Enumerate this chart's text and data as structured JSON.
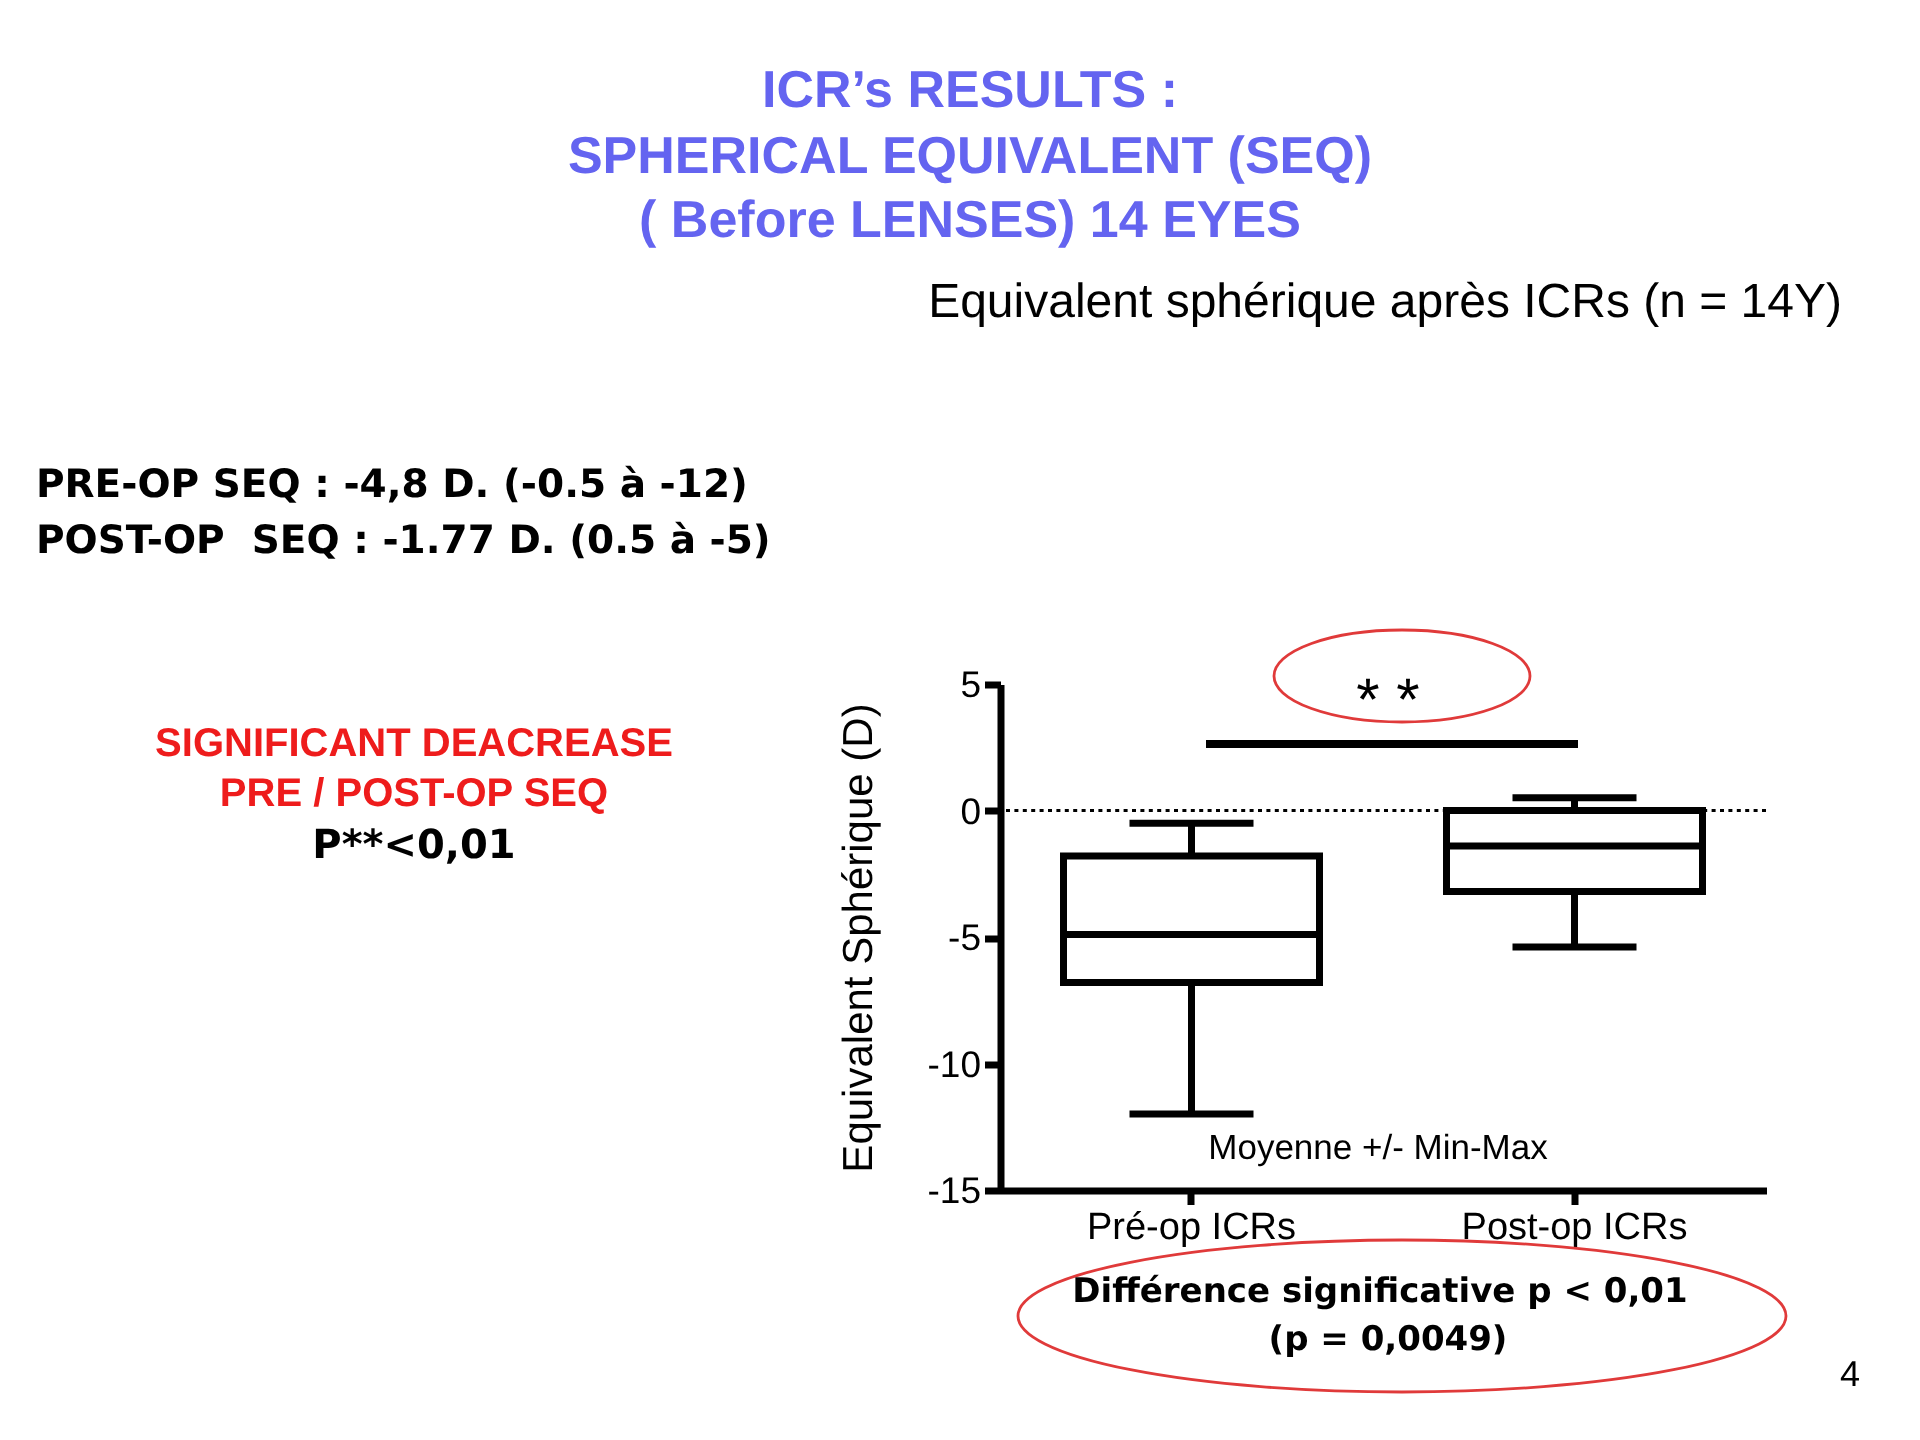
{
  "chart_data": {
    "type": "box",
    "title": "ICR’s RESULTS :\nSPHERICAL EQUIVALENT (SEQ)\n( Before LENSES) 14 EYES",
    "subtitle": "Equivalent sphérique après ICRs (n = 14Y)",
    "ylabel": "Equivalent Sphérique (D)",
    "categories": [
      "Pré-op ICRs",
      "Post-op ICRs"
    ],
    "boxes": [
      {
        "low": -12,
        "q1": -6.8,
        "median": -4.9,
        "q3": -1.8,
        "high": -0.5
      },
      {
        "low": -5.4,
        "q1": -3.2,
        "median": -1.4,
        "q3": 0,
        "high": 0.5
      }
    ],
    "ylim": [
      -15,
      5
    ],
    "yticks": [
      -15,
      -10,
      -5,
      0,
      5
    ],
    "ref_lines": [
      {
        "axis": "y",
        "value": 0,
        "line_style": "dotted"
      }
    ],
    "annotations": [
      "PRE-OP SEQ : -4,8 D. (-0.5 à -12)",
      "POST-OP  SEQ : -1.77 D. (0.5 à -5)",
      "SIGNIFICANT DEACREASE",
      "PRE / POST-OP SEQ",
      "P**<0,01",
      "* *",
      "Moyenne +/- Min-Max",
      "Différence significative p < 0,01",
      "(p = 0,0049)",
      "4"
    ]
  }
}
